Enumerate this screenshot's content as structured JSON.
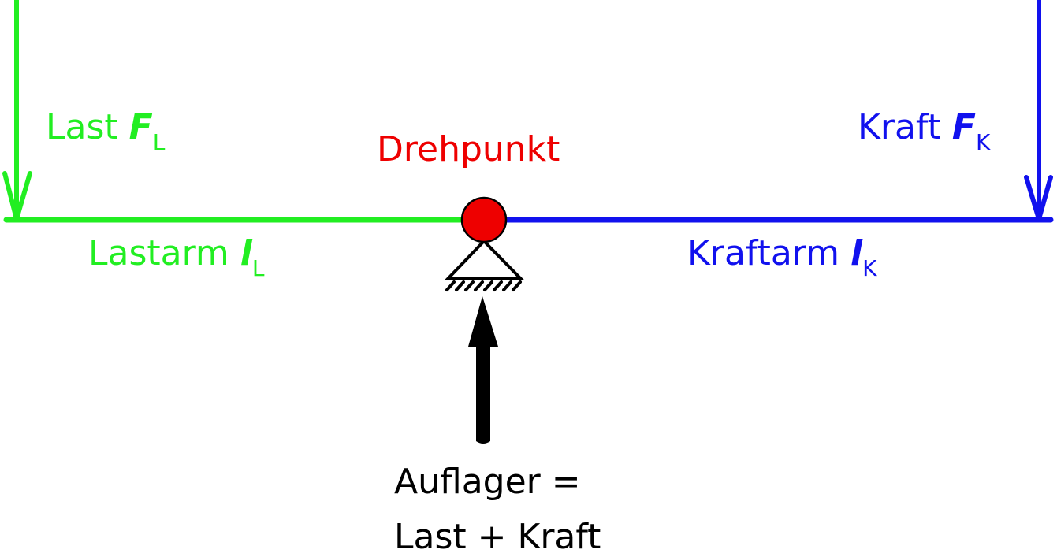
{
  "colors": {
    "load": "#22ee22",
    "force": "#1111ee",
    "pivot": "#ee0000",
    "support": "#000000"
  },
  "labels": {
    "load": {
      "text": "Last",
      "symbol": "F",
      "sub": "L"
    },
    "force": {
      "text": "Kraft",
      "symbol": "F",
      "sub": "K"
    },
    "pivot": "Drehpunkt",
    "load_arm": {
      "text": "Lastarm",
      "symbol": "l",
      "sub": "L"
    },
    "force_arm": {
      "text": "Kraftarm",
      "symbol": "l",
      "sub": "K"
    },
    "support_line1": "Auflager =",
    "support_line2": "Last + Kraft"
  }
}
